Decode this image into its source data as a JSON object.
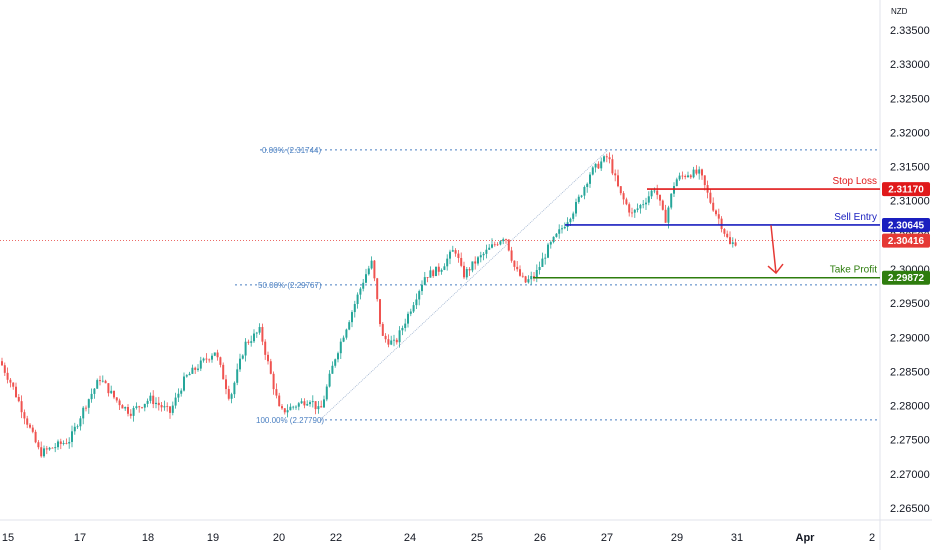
{
  "currency": "NZD",
  "colors": {
    "up": "#26a69a",
    "down": "#ef5350",
    "stop_loss": "#e0191a",
    "sell_entry": "#1a1fbf",
    "take_profit": "#2e7d0e",
    "current_price": "#e53935",
    "fib": "#4a7fc1",
    "arrow": "#e53935"
  },
  "chart_data": {
    "type": "candlestick",
    "y_axis_ticks": [
      "2.33500",
      "2.33000",
      "2.32500",
      "2.32000",
      "2.31500",
      "2.31000",
      "2.30500",
      "2.30000",
      "2.29500",
      "2.29000",
      "2.28500",
      "2.28000",
      "2.27500",
      "2.27000",
      "2.26500"
    ],
    "ylim": [
      2.2632,
      2.337
    ],
    "x_axis_ticks": [
      "15",
      "17",
      "18",
      "19",
      "20",
      "22",
      "24",
      "25",
      "26",
      "27",
      "29",
      "31",
      "Apr",
      "2"
    ],
    "fib_levels": [
      {
        "label": "0.00% (2.31744)",
        "value": 2.31744
      },
      {
        "label": "50.00% (2.29767)",
        "value": 2.29767
      },
      {
        "label": "100.00% (2.27790)",
        "value": 2.2779
      }
    ],
    "levels": [
      {
        "name": "Stop Loss",
        "price": "2.31170",
        "value": 2.3117
      },
      {
        "name": "Sell Entry",
        "price": "2.30645",
        "value": 2.30645
      },
      {
        "name": "Take Profit",
        "price": "2.29872",
        "value": 2.29872
      }
    ],
    "current_price": {
      "price": "2.30416",
      "value": 2.30416
    },
    "price_path_anchors": [
      [
        0,
        2.2865
      ],
      [
        12,
        2.283
      ],
      [
        26,
        2.278
      ],
      [
        40,
        2.273
      ],
      [
        55,
        2.274
      ],
      [
        70,
        2.275
      ],
      [
        85,
        2.28
      ],
      [
        100,
        2.284
      ],
      [
        115,
        2.281
      ],
      [
        130,
        2.279
      ],
      [
        150,
        2.281
      ],
      [
        170,
        2.279
      ],
      [
        185,
        2.284
      ],
      [
        200,
        2.286
      ],
      [
        215,
        2.288
      ],
      [
        230,
        2.281
      ],
      [
        245,
        2.289
      ],
      [
        260,
        2.291
      ],
      [
        270,
        2.285
      ],
      [
        280,
        2.279
      ],
      [
        295,
        2.28
      ],
      [
        310,
        2.281
      ],
      [
        320,
        2.279
      ],
      [
        335,
        2.287
      ],
      [
        350,
        2.293
      ],
      [
        365,
        2.299
      ],
      [
        372,
        2.301
      ],
      [
        382,
        2.29
      ],
      [
        395,
        2.289
      ],
      [
        410,
        2.294
      ],
      [
        425,
        2.299
      ],
      [
        440,
        2.3
      ],
      [
        455,
        2.303
      ],
      [
        463,
        2.299
      ],
      [
        475,
        2.301
      ],
      [
        490,
        2.303
      ],
      [
        505,
        2.305
      ],
      [
        515,
        2.3
      ],
      [
        525,
        2.298
      ],
      [
        535,
        2.299
      ],
      [
        548,
        2.303
      ],
      [
        562,
        2.306
      ],
      [
        575,
        2.309
      ],
      [
        590,
        2.314
      ],
      [
        600,
        2.3155
      ],
      [
        608,
        2.3165
      ],
      [
        620,
        2.311
      ],
      [
        632,
        2.308
      ],
      [
        645,
        2.31
      ],
      [
        655,
        2.312
      ],
      [
        665,
        2.307
      ],
      [
        675,
        2.313
      ],
      [
        688,
        2.314
      ],
      [
        700,
        2.314
      ],
      [
        710,
        2.31
      ],
      [
        720,
        2.307
      ],
      [
        730,
        2.3035
      ],
      [
        738,
        2.3042
      ]
    ]
  }
}
